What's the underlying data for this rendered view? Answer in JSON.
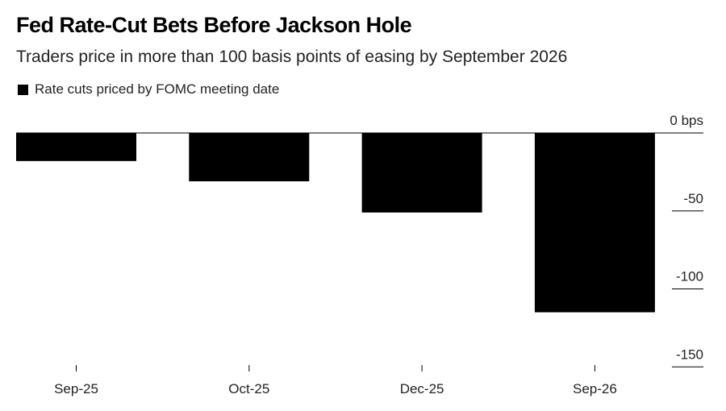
{
  "chart_data": {
    "type": "bar",
    "title": "Fed Rate-Cut Bets Before Jackson Hole",
    "subtitle": "Traders price in more than 100 basis points of easing by September 2026",
    "legend": "Rate cuts priced by FOMC meeting date",
    "categories": [
      "Sep-25",
      "Oct-25",
      "Dec-25",
      "Sep-26"
    ],
    "series": [
      {
        "name": "Rate cuts priced by FOMC meeting date",
        "values": [
          -18,
          -31,
          -51,
          -115
        ],
        "color": "#000000"
      }
    ],
    "y_ticks": [
      {
        "value": 0,
        "label": "0 bps"
      },
      {
        "value": -50,
        "label": "-50"
      },
      {
        "value": -100,
        "label": "-100"
      },
      {
        "value": -150,
        "label": "-150"
      }
    ],
    "ylim": [
      -150,
      0
    ],
    "y_axis_position": "right",
    "grid": false
  }
}
